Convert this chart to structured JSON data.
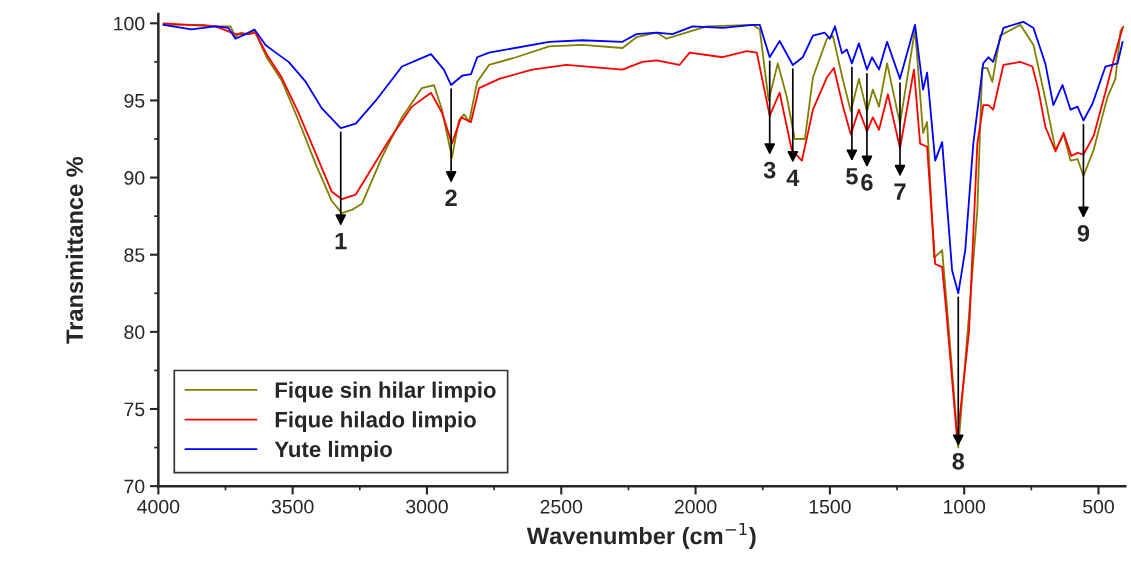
{
  "chart_data": {
    "type": "line",
    "xlabel": "Wavenumber (cm$^{−1}$)",
    "ylabel": "Transmittance %",
    "xlim": [
      4000,
      400
    ],
    "xticks": [
      4000,
      3500,
      3000,
      2500,
      2000,
      1500,
      1000,
      500
    ],
    "ylim": [
      70,
      100.6
    ],
    "yticks": [
      70,
      75,
      80,
      85,
      90,
      95,
      100
    ],
    "grid": false,
    "legend": "bottom left",
    "marker": "none",
    "line_style": "solid",
    "series": [
      {
        "name": "Fique sin hilar limpio",
        "color": "#808000",
        "x": [
          3981,
          3832,
          3787,
          3731,
          3713,
          3694,
          3664,
          3642,
          3597,
          3541,
          3478,
          3415,
          3355,
          3317,
          3280,
          3242,
          3168,
          3093,
          3019,
          2974,
          2944,
          2907,
          2881,
          2862,
          2843,
          2813,
          2769,
          2668,
          2545,
          2422,
          2272,
          2220,
          2145,
          2108,
          1959,
          1787,
          1761,
          1728,
          1694,
          1660,
          1631,
          1593,
          1563,
          1511,
          1489,
          1451,
          1422,
          1392,
          1362,
          1340,
          1317,
          1287,
          1239,
          1183,
          1153,
          1138,
          1112,
          1082,
          1063,
          1022,
          978,
          951,
          933,
          914,
          895,
          866,
          791,
          742,
          698,
          660,
          630,
          604,
          578,
          556,
          518,
          467,
          437,
          418,
          407
        ],
        "values": [
          99.9,
          99.9,
          99.8,
          99.8,
          99.1,
          99.4,
          99.3,
          99.5,
          97.8,
          96.3,
          93.7,
          90.9,
          88.5,
          87.7,
          87.9,
          88.3,
          91.3,
          93.9,
          95.8,
          96.0,
          94.4,
          91.3,
          93.7,
          94.1,
          93.6,
          96.2,
          97.3,
          97.8,
          98.5,
          98.6,
          98.4,
          99.1,
          99.4,
          99.0,
          99.8,
          99.9,
          99.6,
          95.0,
          97.4,
          95.2,
          92.5,
          92.5,
          96.5,
          99.0,
          99.2,
          96.3,
          94.3,
          96.4,
          94.3,
          95.7,
          94.6,
          97.4,
          93.5,
          99.6,
          92.9,
          93.6,
          84.8,
          85.3,
          81.4,
          72.5,
          82.0,
          87.9,
          97.1,
          97.1,
          96.2,
          99.2,
          99.9,
          98.6,
          95.1,
          91.8,
          92.8,
          91.1,
          91.2,
          90.1,
          91.8,
          95.2,
          96.4,
          99.5,
          99.8
        ]
      },
      {
        "name": "Fique hilado limpio",
        "color": "#ff0000",
        "x": [
          3981,
          3787,
          3713,
          3664,
          3638,
          3597,
          3541,
          3478,
          3415,
          3355,
          3317,
          3265,
          3216,
          3142,
          3056,
          2985,
          2944,
          2907,
          2873,
          2836,
          2806,
          2731,
          2608,
          2481,
          2272,
          2198,
          2145,
          2060,
          2022,
          1899,
          1810,
          1772,
          1724,
          1687,
          1642,
          1604,
          1563,
          1511,
          1485,
          1451,
          1422,
          1392,
          1362,
          1340,
          1317,
          1284,
          1239,
          1187,
          1164,
          1138,
          1108,
          1082,
          1067,
          1026,
          982,
          951,
          929,
          910,
          892,
          854,
          791,
          746,
          724,
          698,
          660,
          630,
          601,
          578,
          556,
          518,
          467,
          429,
          410
        ],
        "values": [
          100.0,
          99.8,
          99.3,
          99.3,
          99.4,
          98.0,
          96.5,
          94.2,
          91.6,
          89.1,
          88.6,
          88.9,
          90.3,
          92.4,
          94.6,
          95.5,
          94.2,
          92.2,
          93.9,
          93.6,
          95.8,
          96.4,
          97.0,
          97.3,
          97.0,
          97.5,
          97.6,
          97.3,
          98.1,
          97.8,
          98.2,
          98.1,
          94.0,
          95.5,
          91.8,
          91.1,
          94.4,
          96.5,
          97.1,
          94.6,
          92.8,
          94.4,
          93.0,
          93.9,
          93.1,
          95.4,
          91.9,
          97.0,
          92.2,
          92.0,
          84.4,
          84.2,
          81.4,
          73.0,
          80.0,
          92.2,
          94.7,
          94.7,
          94.4,
          97.3,
          97.5,
          97.2,
          95.7,
          93.3,
          91.7,
          92.9,
          91.4,
          91.6,
          91.5,
          92.7,
          96.0,
          98.6,
          99.7
        ]
      },
      {
        "name": "Yute limpio",
        "color": "#0000ff",
        "x": [
          3981,
          3877,
          3787,
          3739,
          3713,
          3675,
          3642,
          3601,
          3563,
          3515,
          3451,
          3392,
          3321,
          3265,
          3190,
          3093,
          2985,
          2937,
          2910,
          2869,
          2836,
          2813,
          2769,
          2545,
          2422,
          2272,
          2220,
          2145,
          2086,
          2011,
          1899,
          1787,
          1761,
          1724,
          1687,
          1638,
          1601,
          1563,
          1519,
          1500,
          1481,
          1455,
          1437,
          1418,
          1392,
          1362,
          1343,
          1317,
          1287,
          1239,
          1183,
          1153,
          1138,
          1108,
          1082,
          1045,
          1022,
          996,
          966,
          929,
          910,
          892,
          854,
          780,
          742,
          698,
          668,
          634,
          604,
          578,
          556,
          522,
          474,
          429,
          410
        ],
        "values": [
          99.9,
          99.6,
          99.8,
          99.7,
          99.0,
          99.3,
          99.6,
          98.6,
          98.1,
          97.5,
          96.2,
          94.5,
          93.2,
          93.5,
          95.0,
          97.2,
          98.0,
          97.0,
          96.0,
          96.6,
          96.7,
          97.8,
          98.1,
          98.8,
          98.9,
          98.8,
          99.3,
          99.4,
          99.3,
          99.8,
          99.7,
          99.9,
          99.9,
          97.8,
          98.85,
          97.3,
          97.8,
          99.2,
          99.4,
          99.0,
          99.8,
          98.05,
          98.3,
          97.4,
          98.7,
          97.0,
          97.8,
          97.0,
          98.8,
          96.4,
          99.9,
          95.7,
          96.8,
          91.1,
          92.3,
          84.0,
          82.5,
          85.3,
          92.2,
          97.4,
          97.8,
          97.5,
          99.7,
          100.1,
          99.7,
          97.4,
          94.7,
          96.0,
          94.4,
          94.6,
          93.7,
          94.8,
          97.2,
          97.4,
          98.8
        ]
      }
    ],
    "annotations": [
      {
        "text": "1",
        "x": 3321,
        "y": 93.2
      },
      {
        "text": "2",
        "x": 2910,
        "y": 96.0
      },
      {
        "text": "3",
        "x": 1724,
        "y": 97.8
      },
      {
        "text": "4",
        "x": 1638,
        "y": 97.3
      },
      {
        "text": "5",
        "x": 1418,
        "y": 97.4
      },
      {
        "text": "6",
        "x": 1362,
        "y": 97.0
      },
      {
        "text": "7",
        "x": 1239,
        "y": 96.4
      },
      {
        "text": "8",
        "x": 1022,
        "y": 82.5
      },
      {
        "text": "9",
        "x": 556,
        "y": 93.7
      }
    ]
  }
}
